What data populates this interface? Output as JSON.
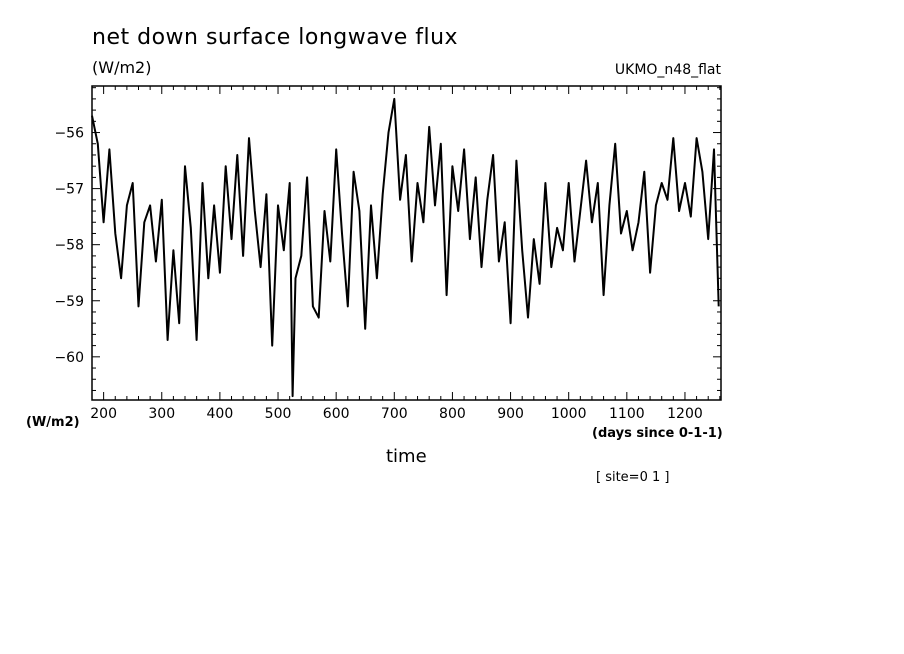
{
  "header": {
    "title": "net down surface longwave flux",
    "units": "(W/m2)",
    "model": "UKMO_n48_flat",
    "yunits": "(W/m2)",
    "xunits": "(days since 0-1-1)",
    "xlabel": "time",
    "site": "[ site=0 1 ]"
  },
  "chart_data": {
    "type": "line",
    "title": "net down surface longwave flux",
    "xlabel": "time",
    "ylabel": "(W/m2)",
    "xlim": [
      180,
      1262
    ],
    "ylim": [
      -60.77,
      -55.17
    ],
    "xticks": [
      200,
      300,
      400,
      500,
      600,
      700,
      800,
      900,
      1000,
      1100,
      1200
    ],
    "yticks": [
      -56,
      -57,
      -58,
      -59,
      -60
    ],
    "grid": false,
    "series": [
      {
        "x": [
          180,
          190,
          200,
          210,
          220,
          230,
          240,
          250,
          260,
          270,
          280,
          290,
          300,
          310,
          320,
          330,
          340,
          350,
          360,
          370,
          380,
          390,
          400,
          410,
          420,
          430,
          440,
          450,
          460,
          470,
          480,
          490,
          500,
          510,
          520,
          525,
          530,
          540,
          550,
          560,
          570,
          580,
          590,
          600,
          610,
          620,
          630,
          640,
          650,
          660,
          670,
          680,
          690,
          700,
          710,
          720,
          730,
          740,
          750,
          760,
          770,
          780,
          790,
          800,
          810,
          820,
          830,
          840,
          850,
          860,
          870,
          880,
          890,
          900,
          910,
          920,
          930,
          940,
          950,
          960,
          970,
          980,
          990,
          1000,
          1010,
          1020,
          1030,
          1040,
          1050,
          1060,
          1070,
          1080,
          1090,
          1100,
          1110,
          1120,
          1130,
          1140,
          1150,
          1160,
          1170,
          1180,
          1190,
          1200,
          1210,
          1220,
          1230,
          1240,
          1250,
          1258
        ],
        "y": [
          -55.7,
          -56.2,
          -57.6,
          -56.3,
          -57.8,
          -58.6,
          -57.3,
          -56.9,
          -59.1,
          -57.6,
          -57.3,
          -58.3,
          -57.2,
          -59.7,
          -58.1,
          -59.4,
          -56.6,
          -57.7,
          -59.7,
          -56.9,
          -58.6,
          -57.3,
          -58.5,
          -56.6,
          -57.9,
          -56.4,
          -58.2,
          -56.1,
          -57.4,
          -58.4,
          -57.1,
          -59.8,
          -57.3,
          -58.1,
          -56.9,
          -60.7,
          -58.6,
          -58.2,
          -56.8,
          -59.1,
          -59.3,
          -57.4,
          -58.3,
          -56.3,
          -57.8,
          -59.1,
          -56.7,
          -57.4,
          -59.5,
          -57.3,
          -58.6,
          -57.1,
          -56.0,
          -55.4,
          -57.2,
          -56.4,
          -58.3,
          -56.9,
          -57.6,
          -55.9,
          -57.3,
          -56.2,
          -58.9,
          -56.6,
          -57.4,
          -56.3,
          -57.9,
          -56.8,
          -58.4,
          -57.2,
          -56.4,
          -58.3,
          -57.6,
          -59.4,
          -56.5,
          -58.1,
          -59.3,
          -57.9,
          -58.7,
          -56.9,
          -58.4,
          -57.7,
          -58.1,
          -56.9,
          -58.3,
          -57.4,
          -56.5,
          -57.6,
          -56.9,
          -58.9,
          -57.3,
          -56.2,
          -57.8,
          -57.4,
          -58.1,
          -57.6,
          -56.7,
          -58.5,
          -57.3,
          -56.9,
          -57.2,
          -56.1,
          -57.4,
          -56.9,
          -57.5,
          -56.1,
          -56.7,
          -57.9,
          -56.3,
          -59.1
        ]
      }
    ]
  }
}
